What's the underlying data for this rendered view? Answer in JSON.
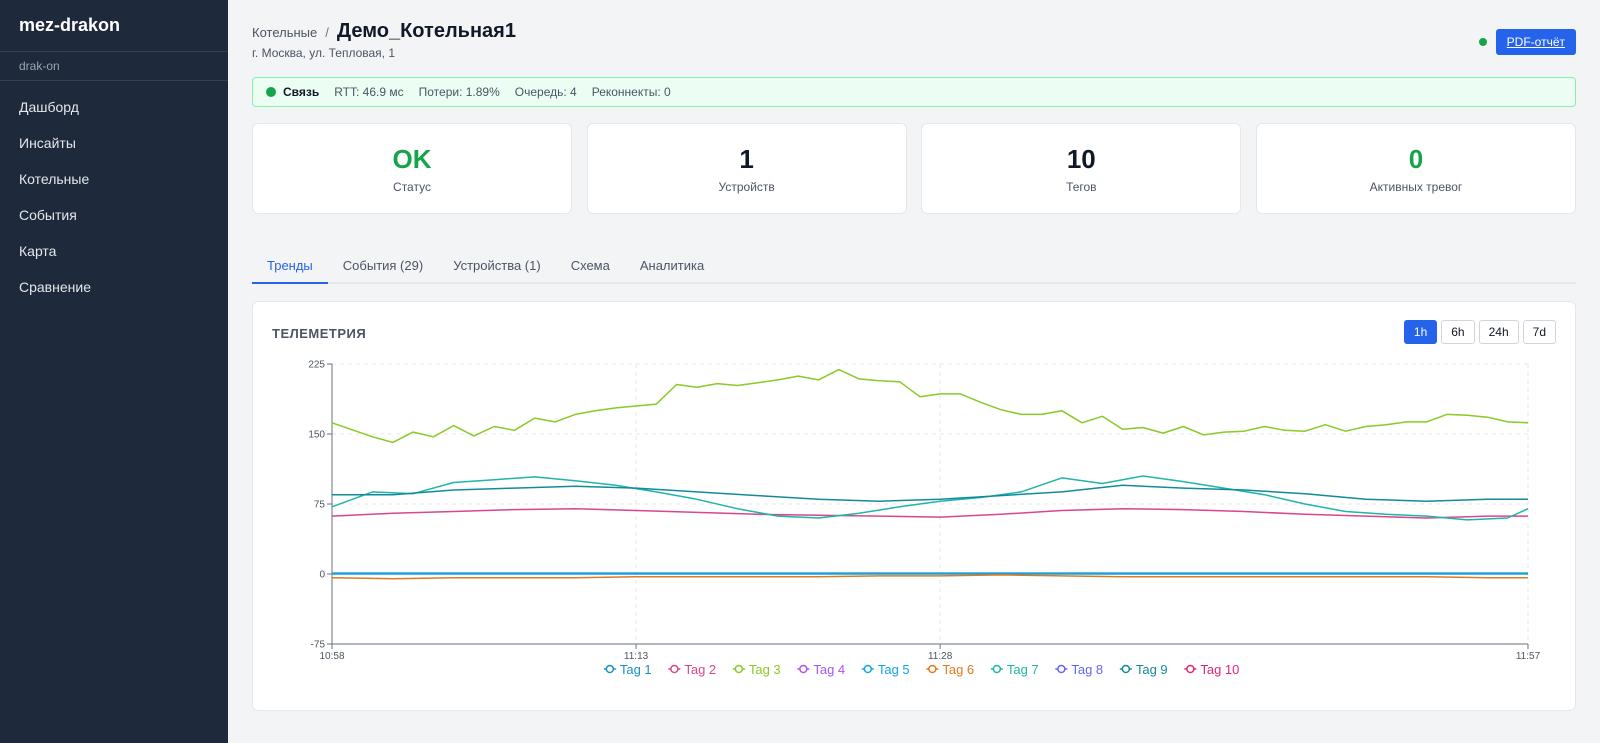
{
  "app": {
    "brand": "mez-drakon",
    "user": "drak-on"
  },
  "sidebar": {
    "items": [
      {
        "label": "Дашборд"
      },
      {
        "label": "Инсайты"
      },
      {
        "label": "Котельные"
      },
      {
        "label": "События"
      },
      {
        "label": "Карта"
      },
      {
        "label": "Сравнение"
      }
    ]
  },
  "header": {
    "breadcrumb": "Котельные",
    "separator": "/",
    "title": "Демо_Котельная1",
    "address": "г. Москва, ул. Тепловая, 1",
    "pdf_label": "PDF-отчёт"
  },
  "connection": {
    "label": "Связь",
    "rtt": "RTT: 46.9 мс",
    "loss": "Потери: 1.89%",
    "queue": "Очередь: 4",
    "reconnects": "Реконнекты: 0"
  },
  "kpis": [
    {
      "value": "OK",
      "label": "Статус",
      "color": "#16a34a"
    },
    {
      "value": "1",
      "label": "Устройств",
      "color": "#111827"
    },
    {
      "value": "10",
      "label": "Тегов",
      "color": "#111827"
    },
    {
      "value": "0",
      "label": "Активных тревог",
      "color": "#16a34a"
    }
  ],
  "tabs": [
    {
      "label": "Тренды"
    },
    {
      "label": "События (29)"
    },
    {
      "label": "Устройства (1)"
    },
    {
      "label": "Схема"
    },
    {
      "label": "Аналитика"
    }
  ],
  "panel": {
    "title": "ТЕЛЕМЕТРИЯ",
    "ranges": [
      "1h",
      "6h",
      "24h",
      "7d"
    ],
    "active_range": "1h"
  },
  "chart_data": {
    "type": "line",
    "title": "",
    "xlabel": "",
    "ylabel": "",
    "ylim": [
      -75,
      225
    ],
    "yticks": [
      "225",
      "150",
      "75",
      "0",
      "-75"
    ],
    "xticks": [
      "10:58",
      "11:13",
      "11:28",
      "11:57"
    ],
    "xtick_minutes": [
      0,
      15,
      30,
      59
    ],
    "x_range_minutes": [
      0,
      59
    ],
    "grid": true,
    "legend": "bottom",
    "series": [
      {
        "name": "Tag 1",
        "color": "#1a8fc4",
        "x": [
          0,
          59
        ],
        "values": [
          1,
          1
        ]
      },
      {
        "name": "Tag 2",
        "color": "#d9468d",
        "x": [
          0,
          3,
          6,
          9,
          12,
          15,
          18,
          21,
          24,
          27,
          30,
          33,
          36,
          39,
          42,
          45,
          48,
          51,
          54,
          57,
          59
        ],
        "values": [
          62,
          65,
          67,
          69,
          70,
          68,
          66,
          64,
          63,
          62,
          61,
          64,
          68,
          70,
          69,
          67,
          64,
          62,
          60,
          62,
          62
        ]
      },
      {
        "name": "Tag 3",
        "color": "#8ac926",
        "x": [
          0,
          2,
          3,
          4,
          5,
          6,
          7,
          8,
          9,
          10,
          11,
          12,
          13,
          14,
          15,
          16,
          17,
          18,
          19,
          20,
          21,
          22,
          23,
          24,
          25,
          26,
          27,
          28,
          29,
          30,
          31,
          32,
          33,
          34,
          35,
          36,
          37,
          38,
          39,
          40,
          41,
          42,
          43,
          44,
          45,
          46,
          47,
          48,
          49,
          50,
          51,
          52,
          53,
          54,
          55,
          56,
          57,
          58,
          59
        ],
        "values": [
          162,
          147,
          141,
          152,
          147,
          159,
          148,
          158,
          154,
          167,
          163,
          171,
          175,
          178,
          180,
          182,
          203,
          200,
          204,
          202,
          205,
          208,
          212,
          208,
          219,
          209,
          207,
          206,
          190,
          193,
          193,
          184,
          176,
          171,
          171,
          175,
          162,
          169,
          155,
          157,
          151,
          158,
          149,
          152,
          153,
          158,
          154,
          153,
          160,
          153,
          158,
          160,
          163,
          163,
          171,
          170,
          168,
          163,
          162
        ]
      },
      {
        "name": "Tag 4",
        "color": "#a855f7",
        "x": [],
        "values": []
      },
      {
        "name": "Tag 5",
        "color": "#0ea5e9",
        "x": [
          0,
          59
        ],
        "values": [
          0,
          0
        ]
      },
      {
        "name": "Tag 6",
        "color": "#e07a1f",
        "x": [
          0,
          3,
          6,
          9,
          12,
          15,
          18,
          21,
          24,
          27,
          30,
          33,
          36,
          39,
          42,
          45,
          48,
          51,
          54,
          57,
          59
        ],
        "values": [
          -4,
          -5,
          -4,
          -4,
          -4,
          -3,
          -3,
          -3,
          -3,
          -2,
          -2,
          -1,
          -2,
          -3,
          -3,
          -3,
          -3,
          -3,
          -3,
          -4,
          -4
        ]
      },
      {
        "name": "Tag 7",
        "color": "#1fb5a8",
        "x": [
          0,
          2,
          4,
          6,
          8,
          10,
          12,
          14,
          16,
          18,
          20,
          22,
          24,
          26,
          28,
          30,
          32,
          34,
          36,
          38,
          40,
          42,
          44,
          46,
          48,
          50,
          52,
          54,
          56,
          58,
          59
        ],
        "values": [
          72,
          88,
          86,
          98,
          101,
          104,
          100,
          95,
          88,
          80,
          70,
          62,
          60,
          65,
          72,
          78,
          82,
          88,
          103,
          97,
          105,
          99,
          92,
          85,
          75,
          67,
          64,
          62,
          58,
          60,
          70
        ]
      },
      {
        "name": "Tag 8",
        "color": "#6366f1",
        "x": [],
        "values": []
      },
      {
        "name": "Tag 9",
        "color": "#138a9c",
        "x": [
          0,
          3,
          6,
          9,
          12,
          15,
          18,
          21,
          24,
          27,
          30,
          33,
          36,
          39,
          42,
          45,
          48,
          51,
          54,
          57,
          59
        ],
        "values": [
          85,
          85,
          90,
          92,
          94,
          92,
          88,
          84,
          80,
          78,
          80,
          84,
          88,
          95,
          92,
          90,
          86,
          80,
          78,
          80,
          80
        ]
      },
      {
        "name": "Tag 10",
        "color": "#db2777",
        "x": [],
        "values": []
      }
    ]
  }
}
